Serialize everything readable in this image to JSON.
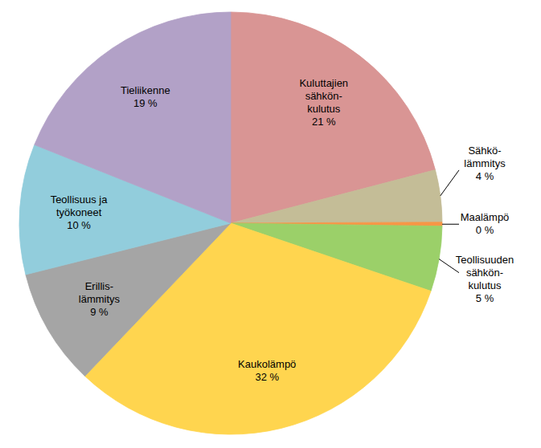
{
  "chart_data": {
    "type": "pie",
    "categories": [
      "Kuluttajien\nsähkön-\nkulutus",
      "Sähkö-\nlämmitys",
      "Maalämpö",
      "Teollisuuden\nsähkön-\nkulutus",
      "Kaukolämpö",
      "Erillis-\nlämmitys",
      "Teollisuus ja\ntyökoneet",
      "Tieliikenne"
    ],
    "values": [
      21,
      4,
      0.3,
      5,
      32,
      9,
      10,
      19
    ],
    "value_labels": [
      "21 %",
      "4 %",
      "0 %",
      "5 %",
      "32 %",
      "9 %",
      "10 %",
      "19 %"
    ],
    "colors": [
      "#d99594",
      "#c4bd97",
      "#f79646",
      "#9bd069",
      "#ffd54f",
      "#a5a5a5",
      "#92cddc",
      "#b2a1c7"
    ],
    "data_labels": true
  }
}
